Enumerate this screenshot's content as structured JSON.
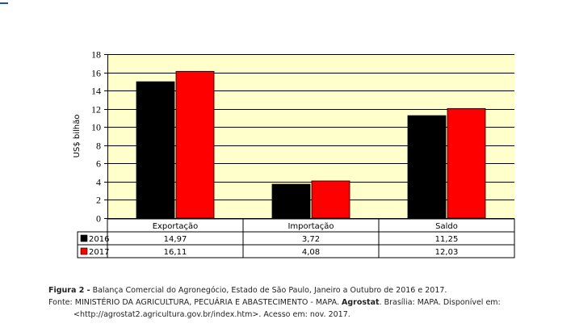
{
  "chart_data": {
    "type": "bar",
    "ylabel": "US$ bilhão",
    "ylim": [
      0,
      18
    ],
    "yticks": [
      0,
      2,
      4,
      6,
      8,
      10,
      12,
      14,
      16,
      18
    ],
    "categories": [
      "Exportação",
      "Importação",
      "Saldo"
    ],
    "series": [
      {
        "name": "2016",
        "values": [
          14.97,
          3.72,
          11.25
        ],
        "labels": [
          "14,97",
          "3,72",
          "11,25"
        ],
        "color": "#000000"
      },
      {
        "name": "2017",
        "values": [
          16.11,
          4.08,
          12.03
        ],
        "labels": [
          "16,11",
          "4,08",
          "12,03"
        ],
        "color": "#ff0000"
      }
    ],
    "plot_background": "#ffffcc",
    "grid": true
  },
  "caption": {
    "figure_label": "Figura 2 -",
    "figure_text": " Balança Comercial do Agronegócio, Estado de São Paulo, Janeiro a Outubro de 2016 e 2017.",
    "source_prefix": "Fonte: MINISTÉRIO DA AGRICULTURA, PECUÁRIA E ABASTECIMENTO - MAPA. ",
    "source_bold": "Agrostat",
    "source_suffix": ". Brasília: MAPA. Disponível em:",
    "source_line2": "<http://agrostat2.agricultura.gov.br/index.htm>. Acesso em: nov. 2017."
  }
}
